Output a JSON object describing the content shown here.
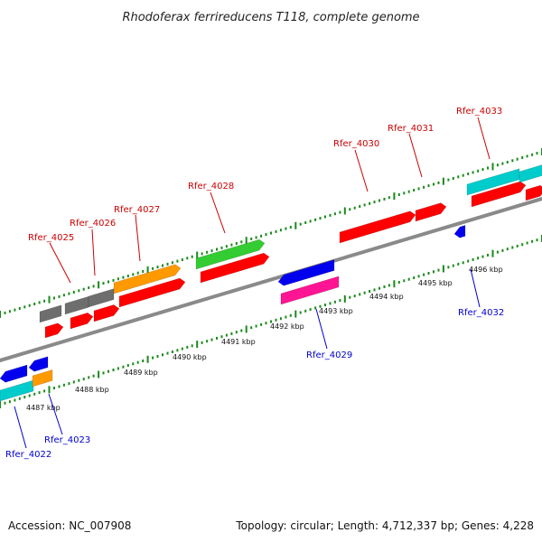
{
  "header": {
    "title": "Rhodoferax ferrireducens T118, complete genome"
  },
  "footer": {
    "accession": "Accession: NC_007908",
    "summary": "Topology: circular; Length: 4,712,337 bp; Genes: 4,228"
  },
  "colors": {
    "forward_label": "#cc0000",
    "reverse_label": "#0000cc",
    "backbone": "#8a8a8a",
    "tick": "#1a8a1a",
    "red": "#ff0000",
    "gray": "#6e6e6e",
    "orange": "#ff9900",
    "green": "#33cc33",
    "blue": "#0000ee",
    "magenta": "#ff1493",
    "cyan": "#00cccc"
  },
  "scale_labels": [
    "4487 kbp",
    "4488 kbp",
    "4489 kbp",
    "4490 kbp",
    "4491 kbp",
    "4492 kbp",
    "4493 kbp",
    "4494 kbp",
    "4495 kbp",
    "4496 kbp"
  ],
  "forward_genes": [
    "Rfer_4025",
    "Rfer_4026",
    "Rfer_4027",
    "Rfer_4028",
    "Rfer_4030",
    "Rfer_4031",
    "Rfer_4033"
  ],
  "reverse_genes": [
    "Rfer_4022",
    "Rfer_4023",
    "Rfer_4029",
    "Rfer_4032"
  ]
}
